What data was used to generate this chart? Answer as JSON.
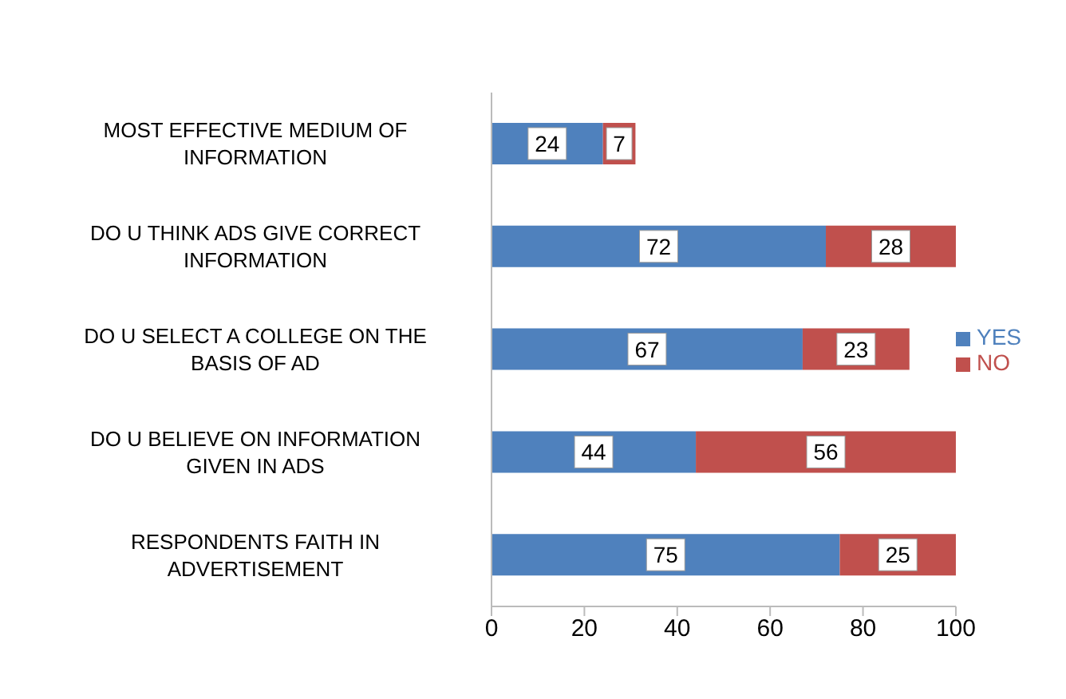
{
  "chart_data": {
    "type": "bar",
    "orientation": "horizontal",
    "stacked": true,
    "categories": [
      "MOST EFFECTIVE MEDIUM OF INFORMATION",
      "DO U THINK ADS GIVE CORRECT INFORMATION",
      "DO U SELECT A COLLEGE ON THE BASIS OF AD",
      "DO U BELIEVE ON INFORMATION GIVEN IN ADS",
      "RESPONDENTS FAITH IN ADVERTISEMENT"
    ],
    "series": [
      {
        "name": "YES",
        "color": "#4f81bd",
        "values": [
          24,
          72,
          67,
          44,
          75
        ]
      },
      {
        "name": "NO",
        "color": "#c0504d",
        "values": [
          7,
          28,
          23,
          56,
          25
        ]
      }
    ],
    "xlim": [
      0,
      100
    ],
    "xticks": [
      0,
      20,
      40,
      60,
      80,
      100
    ],
    "data_labels": true,
    "legend": "right",
    "grid": false
  }
}
